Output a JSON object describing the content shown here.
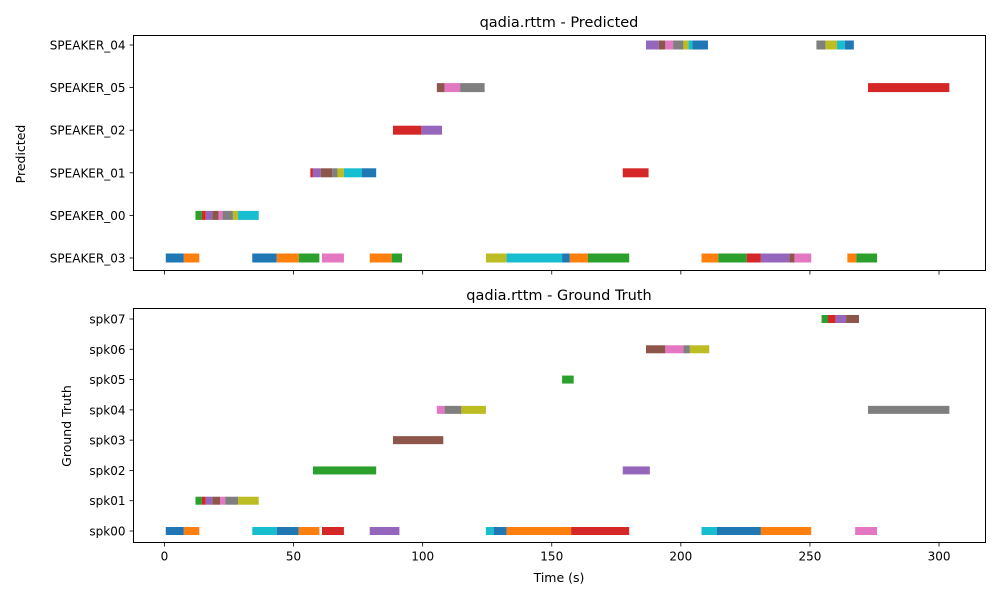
{
  "palette": [
    "#1f77b4",
    "#ff7f0e",
    "#2ca02c",
    "#d62728",
    "#9467bd",
    "#8c564b",
    "#e377c2",
    "#7f7f7f",
    "#bcbd22",
    "#17becf"
  ],
  "chart_data": [
    {
      "type": "broken_barh",
      "title": "qadia.rttm - Predicted",
      "xlabel": "",
      "ylabel": "Predicted",
      "xlim": [
        -12,
        318
      ],
      "xticks": [
        0,
        50,
        100,
        150,
        200,
        250,
        300
      ],
      "xtick_labels_visible": false,
      "grid": false,
      "rows": [
        {
          "label": "SPEAKER_03",
          "segments": [
            {
              "start": 0.5,
              "end": 7.5,
              "color": 0
            },
            {
              "start": 7.5,
              "end": 13.5,
              "color": 1
            },
            {
              "start": 34,
              "end": 43.5,
              "color": 0
            },
            {
              "start": 43.5,
              "end": 52,
              "color": 1
            },
            {
              "start": 52,
              "end": 60,
              "color": 2
            },
            {
              "start": 61,
              "end": 69.5,
              "color": 6
            },
            {
              "start": 79.5,
              "end": 88,
              "color": 1
            },
            {
              "start": 88,
              "end": 92,
              "color": 2
            },
            {
              "start": 124.5,
              "end": 132.5,
              "color": 8
            },
            {
              "start": 132.5,
              "end": 154,
              "color": 9
            },
            {
              "start": 154,
              "end": 157,
              "color": 0
            },
            {
              "start": 157,
              "end": 164,
              "color": 1
            },
            {
              "start": 164,
              "end": 180,
              "color": 2
            },
            {
              "start": 208,
              "end": 214.5,
              "color": 1
            },
            {
              "start": 214.5,
              "end": 225.5,
              "color": 2
            },
            {
              "start": 225.5,
              "end": 231,
              "color": 3
            },
            {
              "start": 231,
              "end": 242,
              "color": 4
            },
            {
              "start": 242,
              "end": 244,
              "color": 5
            },
            {
              "start": 244,
              "end": 250.5,
              "color": 6
            },
            {
              "start": 264.5,
              "end": 268,
              "color": 1
            },
            {
              "start": 268,
              "end": 276,
              "color": 2
            }
          ]
        },
        {
          "label": "SPEAKER_00",
          "segments": [
            {
              "start": 12,
              "end": 14.5,
              "color": 2
            },
            {
              "start": 14.5,
              "end": 16,
              "color": 3
            },
            {
              "start": 16,
              "end": 18.5,
              "color": 4
            },
            {
              "start": 18.5,
              "end": 21,
              "color": 5
            },
            {
              "start": 21,
              "end": 22.5,
              "color": 6
            },
            {
              "start": 22.5,
              "end": 26.5,
              "color": 7
            },
            {
              "start": 26.5,
              "end": 28.5,
              "color": 8
            },
            {
              "start": 28.5,
              "end": 36.5,
              "color": 9
            }
          ]
        },
        {
          "label": "SPEAKER_01",
          "segments": [
            {
              "start": 56.5,
              "end": 57.5,
              "color": 3
            },
            {
              "start": 57.5,
              "end": 60.5,
              "color": 4
            },
            {
              "start": 60.5,
              "end": 65,
              "color": 5
            },
            {
              "start": 65,
              "end": 67,
              "color": 7
            },
            {
              "start": 67,
              "end": 69.5,
              "color": 8
            },
            {
              "start": 69.5,
              "end": 76.5,
              "color": 9
            },
            {
              "start": 76.5,
              "end": 82,
              "color": 0
            },
            {
              "start": 177.5,
              "end": 187.5,
              "color": 3
            }
          ]
        },
        {
          "label": "SPEAKER_02",
          "segments": [
            {
              "start": 88.5,
              "end": 99.5,
              "color": 3
            },
            {
              "start": 99.5,
              "end": 107.5,
              "color": 4
            }
          ]
        },
        {
          "label": "SPEAKER_05",
          "segments": [
            {
              "start": 105.5,
              "end": 108.5,
              "color": 5
            },
            {
              "start": 108.5,
              "end": 114.5,
              "color": 6
            },
            {
              "start": 114.5,
              "end": 124,
              "color": 7
            },
            {
              "start": 272.5,
              "end": 304,
              "color": 3
            }
          ]
        },
        {
          "label": "SPEAKER_04",
          "segments": [
            {
              "start": 186.5,
              "end": 191.5,
              "color": 4
            },
            {
              "start": 191.5,
              "end": 194,
              "color": 5
            },
            {
              "start": 194,
              "end": 197,
              "color": 6
            },
            {
              "start": 197,
              "end": 201,
              "color": 7
            },
            {
              "start": 201,
              "end": 203,
              "color": 8
            },
            {
              "start": 203,
              "end": 204.5,
              "color": 9
            },
            {
              "start": 204.5,
              "end": 210.5,
              "color": 0
            },
            {
              "start": 252.5,
              "end": 256,
              "color": 7
            },
            {
              "start": 256,
              "end": 260.5,
              "color": 8
            },
            {
              "start": 260.5,
              "end": 263.5,
              "color": 9
            },
            {
              "start": 263.5,
              "end": 267,
              "color": 0
            }
          ]
        }
      ]
    },
    {
      "type": "broken_barh",
      "title": "qadia.rttm - Ground Truth",
      "xlabel": "Time (s)",
      "ylabel": "Ground Truth",
      "xlim": [
        -12,
        318
      ],
      "xticks": [
        0,
        50,
        100,
        150,
        200,
        250,
        300
      ],
      "xtick_labels_visible": true,
      "grid": false,
      "rows": [
        {
          "label": "spk00",
          "segments": [
            {
              "start": 0.5,
              "end": 7.5,
              "color": 0
            },
            {
              "start": 7.5,
              "end": 13.5,
              "color": 1
            },
            {
              "start": 34,
              "end": 43.5,
              "color": 9
            },
            {
              "start": 43.5,
              "end": 52,
              "color": 0
            },
            {
              "start": 52,
              "end": 60,
              "color": 1
            },
            {
              "start": 61,
              "end": 69.5,
              "color": 3
            },
            {
              "start": 79.5,
              "end": 91,
              "color": 4
            },
            {
              "start": 124.5,
              "end": 127.5,
              "color": 9
            },
            {
              "start": 127.5,
              "end": 132.5,
              "color": 0
            },
            {
              "start": 132.5,
              "end": 157.5,
              "color": 1
            },
            {
              "start": 157.5,
              "end": 180,
              "color": 3
            },
            {
              "start": 208,
              "end": 214,
              "color": 9
            },
            {
              "start": 214,
              "end": 231,
              "color": 0
            },
            {
              "start": 231,
              "end": 250.5,
              "color": 1
            },
            {
              "start": 267.5,
              "end": 276,
              "color": 6
            }
          ]
        },
        {
          "label": "spk01",
          "segments": [
            {
              "start": 12,
              "end": 14.5,
              "color": 2
            },
            {
              "start": 14.5,
              "end": 16,
              "color": 3
            },
            {
              "start": 16,
              "end": 18.5,
              "color": 4
            },
            {
              "start": 18.5,
              "end": 21.5,
              "color": 5
            },
            {
              "start": 21.5,
              "end": 23.5,
              "color": 6
            },
            {
              "start": 23.5,
              "end": 28.5,
              "color": 7
            },
            {
              "start": 28.5,
              "end": 36.5,
              "color": 8
            }
          ]
        },
        {
          "label": "spk02",
          "segments": [
            {
              "start": 57.5,
              "end": 82,
              "color": 2
            },
            {
              "start": 177.5,
              "end": 188,
              "color": 4
            }
          ]
        },
        {
          "label": "spk03",
          "segments": [
            {
              "start": 88.5,
              "end": 108,
              "color": 5
            }
          ]
        },
        {
          "label": "spk04",
          "segments": [
            {
              "start": 105.5,
              "end": 108.5,
              "color": 6
            },
            {
              "start": 108.5,
              "end": 115,
              "color": 7
            },
            {
              "start": 115,
              "end": 124.5,
              "color": 8
            },
            {
              "start": 272.5,
              "end": 304,
              "color": 7
            }
          ]
        },
        {
          "label": "spk05",
          "segments": [
            {
              "start": 154,
              "end": 158.5,
              "color": 2
            }
          ]
        },
        {
          "label": "spk06",
          "segments": [
            {
              "start": 186.5,
              "end": 194,
              "color": 5
            },
            {
              "start": 194,
              "end": 201,
              "color": 6
            },
            {
              "start": 201,
              "end": 203.5,
              "color": 7
            },
            {
              "start": 203.5,
              "end": 211,
              "color": 8
            }
          ]
        },
        {
          "label": "spk07",
          "segments": [
            {
              "start": 254.5,
              "end": 257,
              "color": 2
            },
            {
              "start": 257,
              "end": 260,
              "color": 3
            },
            {
              "start": 260,
              "end": 264,
              "color": 4
            },
            {
              "start": 264,
              "end": 269,
              "color": 5
            }
          ]
        }
      ]
    }
  ]
}
